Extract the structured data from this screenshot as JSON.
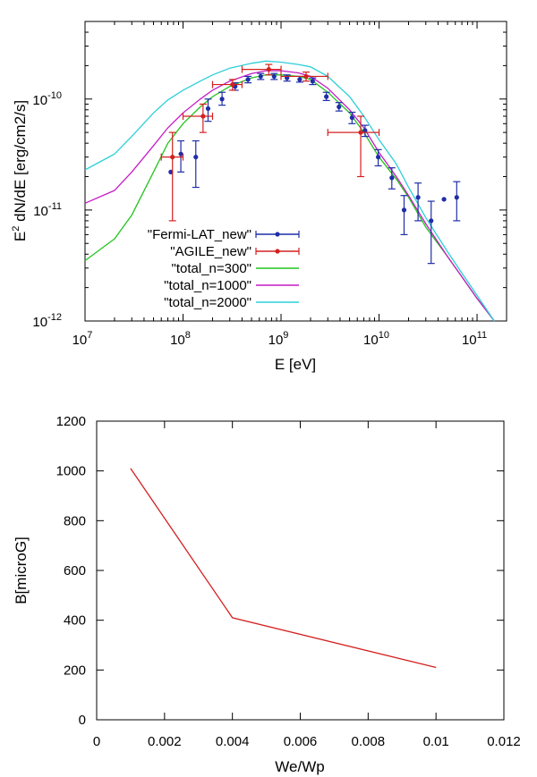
{
  "chart_data": [
    {
      "type": "line",
      "title": "",
      "xlabel": "E [eV]",
      "ylabel_prefix": "E",
      "ylabel_sup": "2",
      "ylabel_suffix": " dN/dE [erg/cm2/s]",
      "xscale": "log",
      "yscale": "log",
      "xlim": [
        10000000.0,
        200000000000.0
      ],
      "ylim": [
        1e-12,
        5e-10
      ],
      "grid": false,
      "legend_position": "bottom-left",
      "x_ticks": [
        {
          "value": 10000000.0,
          "base": "10",
          "exp": "7"
        },
        {
          "value": 100000000.0,
          "base": "10",
          "exp": "8"
        },
        {
          "value": 1000000000.0,
          "base": "10",
          "exp": "9"
        },
        {
          "value": 10000000000.0,
          "base": "10",
          "exp": "10"
        },
        {
          "value": 100000000000.0,
          "base": "10",
          "exp": "11"
        }
      ],
      "y_ticks": [
        {
          "value": 1e-12,
          "base": "10",
          "exp": "-12"
        },
        {
          "value": 1e-11,
          "base": "10",
          "exp": "-11"
        },
        {
          "value": 1e-10,
          "base": "10",
          "exp": "-10"
        }
      ],
      "series": [
        {
          "name": "\"Fermi-LAT_new\"",
          "kind": "points",
          "color": "#1f2ea8",
          "points": [
            {
              "x": 75000000.0,
              "y": 2.2e-11,
              "lo": 2.2e-11,
              "hi": 2.2e-11
            },
            {
              "x": 95000000.0,
              "y": 3.2e-11,
              "lo": 2.2e-11,
              "hi": 4.2e-11
            },
            {
              "x": 135000000.0,
              "y": 3e-11,
              "lo": 1.6e-11,
              "hi": 4.2e-11
            },
            {
              "x": 180000000.0,
              "y": 8.2e-11,
              "lo": 6.3e-11,
              "hi": 1e-10
            },
            {
              "x": 250000000.0,
              "y": 1e-10,
              "lo": 8.8e-11,
              "hi": 1.15e-10
            },
            {
              "x": 340000000.0,
              "y": 1.3e-10,
              "lo": 1.2e-10,
              "hi": 1.4e-10
            },
            {
              "x": 460000000.0,
              "y": 1.5e-10,
              "lo": 1.4e-10,
              "hi": 1.6e-10
            },
            {
              "x": 620000000.0,
              "y": 1.6e-10,
              "lo": 1.5e-10,
              "hi": 1.7e-10
            },
            {
              "x": 850000000.0,
              "y": 1.6e-10,
              "lo": 1.5e-10,
              "hi": 1.7e-10
            },
            {
              "x": 1150000000.0,
              "y": 1.55e-10,
              "lo": 1.45e-10,
              "hi": 1.65e-10
            },
            {
              "x": 1550000000.0,
              "y": 1.5e-10,
              "lo": 1.42e-10,
              "hi": 1.6e-10
            },
            {
              "x": 2100000000.0,
              "y": 1.45e-10,
              "lo": 1.35e-10,
              "hi": 1.55e-10
            },
            {
              "x": 2900000000.0,
              "y": 1.05e-10,
              "lo": 9.7e-11,
              "hi": 1.15e-10
            },
            {
              "x": 3900000000.0,
              "y": 8.5e-11,
              "lo": 7.8e-11,
              "hi": 9.3e-11
            },
            {
              "x": 5300000000.0,
              "y": 6.8e-11,
              "lo": 6e-11,
              "hi": 7.6e-11
            },
            {
              "x": 7200000000.0,
              "y": 5.2e-11,
              "lo": 4.6e-11,
              "hi": 5.8e-11
            },
            {
              "x": 9800000000.0,
              "y": 3e-11,
              "lo": 2.5e-11,
              "hi": 3.5e-11
            },
            {
              "x": 13500000000.0,
              "y": 1.95e-11,
              "lo": 1.55e-11,
              "hi": 2.4e-11
            },
            {
              "x": 18000000000.0,
              "y": 1e-11,
              "lo": 6e-12,
              "hi": 1.35e-11
            },
            {
              "x": 25000000000.0,
              "y": 1.3e-11,
              "lo": 8e-12,
              "hi": 1.75e-11
            },
            {
              "x": 34000000000.0,
              "y": 8e-12,
              "lo": 3.3e-12,
              "hi": 1.2e-11
            },
            {
              "x": 46000000000.0,
              "y": 1.25e-11,
              "lo": 1.25e-11,
              "hi": 1.25e-11
            },
            {
              "x": 62000000000.0,
              "y": 1.3e-11,
              "lo": 8e-12,
              "hi": 1.8e-11
            }
          ]
        },
        {
          "name": "\"AGILE_new\"",
          "kind": "points",
          "color": "#d42020",
          "points": [
            {
              "x": 78000000.0,
              "y": 3e-11,
              "lo": 8e-12,
              "hi": 5e-11,
              "xlo": 60000000.0,
              "xhi": 100000000.0
            },
            {
              "x": 160000000.0,
              "y": 7e-11,
              "lo": 5e-11,
              "hi": 9e-11,
              "xlo": 100000000.0,
              "xhi": 200000000.0
            },
            {
              "x": 320000000.0,
              "y": 1.35e-10,
              "lo": 1.2e-10,
              "hi": 1.5e-10,
              "xlo": 200000000.0,
              "xhi": 400000000.0
            },
            {
              "x": 750000000.0,
              "y": 1.85e-10,
              "lo": 1.65e-10,
              "hi": 2.05e-10,
              "xlo": 400000000.0,
              "xhi": 1000000000.0
            },
            {
              "x": 1800000000.0,
              "y": 1.6e-10,
              "lo": 1.45e-10,
              "hi": 1.75e-10,
              "xlo": 1000000000.0,
              "xhi": 3000000000.0
            },
            {
              "x": 6500000000.0,
              "y": 5e-11,
              "lo": 2e-11,
              "hi": 7e-11,
              "xlo": 3000000000.0,
              "xhi": 10000000000.0
            }
          ]
        },
        {
          "name": "\"total_n=300\"",
          "kind": "line",
          "color": "#22c51e",
          "points": [
            [
              10000000.0,
              3.5e-12
            ],
            [
              20000000.0,
              5.5e-12
            ],
            [
              30000000.0,
              9e-12
            ],
            [
              50000000.0,
              2.2e-11
            ],
            [
              70000000.0,
              4e-11
            ],
            [
              100000000.0,
              6e-11
            ],
            [
              150000000.0,
              8.5e-11
            ],
            [
              200000000.0,
              1.05e-10
            ],
            [
              300000000.0,
              1.3e-10
            ],
            [
              500000000.0,
              1.55e-10
            ],
            [
              700000000.0,
              1.65e-10
            ],
            [
              1000000000.0,
              1.65e-10
            ],
            [
              1500000000.0,
              1.6e-10
            ],
            [
              2000000000.0,
              1.5e-10
            ],
            [
              3000000000.0,
              1.15e-10
            ],
            [
              5000000000.0,
              7.5e-11
            ],
            [
              7000000000.0,
              5e-11
            ],
            [
              10000000000.0,
              3e-11
            ],
            [
              15000000000.0,
              1.9e-11
            ],
            [
              20000000000.0,
              1.3e-11
            ],
            [
              30000000000.0,
              7e-12
            ],
            [
              50000000000.0,
              3.8e-12
            ],
            [
              70000000000.0,
              2.5e-12
            ],
            [
              100000000000.0,
              1.6e-12
            ],
            [
              150000000000.0,
              1e-12
            ]
          ]
        },
        {
          "name": "\"total_n=1000\"",
          "kind": "line",
          "color": "#c41cc4",
          "points": [
            [
              10000000.0,
              1.15e-11
            ],
            [
              20000000.0,
              1.5e-11
            ],
            [
              30000000.0,
              2.2e-11
            ],
            [
              50000000.0,
              3.8e-11
            ],
            [
              70000000.0,
              5.5e-11
            ],
            [
              100000000.0,
              7.5e-11
            ],
            [
              150000000.0,
              1e-10
            ],
            [
              200000000.0,
              1.2e-10
            ],
            [
              300000000.0,
              1.45e-10
            ],
            [
              500000000.0,
              1.7e-10
            ],
            [
              700000000.0,
              1.8e-10
            ],
            [
              1000000000.0,
              1.8e-10
            ],
            [
              1500000000.0,
              1.72e-10
            ],
            [
              2000000000.0,
              1.6e-10
            ],
            [
              3000000000.0,
              1.25e-10
            ],
            [
              5000000000.0,
              8e-11
            ],
            [
              7000000000.0,
              5.5e-11
            ],
            [
              10000000000.0,
              3.3e-11
            ],
            [
              15000000000.0,
              2e-11
            ],
            [
              20000000000.0,
              1.35e-11
            ],
            [
              30000000000.0,
              7.5e-12
            ],
            [
              50000000000.0,
              3.8e-12
            ],
            [
              70000000000.0,
              2.5e-12
            ],
            [
              100000000000.0,
              1.6e-12
            ],
            [
              150000000000.0,
              1e-12
            ]
          ]
        },
        {
          "name": "\"total_n=2000\"",
          "kind": "line",
          "color": "#2ecfd9",
          "points": [
            [
              10000000.0,
              2.3e-11
            ],
            [
              20000000.0,
              3.2e-11
            ],
            [
              30000000.0,
              4.6e-11
            ],
            [
              50000000.0,
              7.5e-11
            ],
            [
              70000000.0,
              9.8e-11
            ],
            [
              100000000.0,
              1.2e-10
            ],
            [
              150000000.0,
              1.45e-10
            ],
            [
              200000000.0,
              1.65e-10
            ],
            [
              300000000.0,
              1.9e-10
            ],
            [
              500000000.0,
              2.1e-10
            ],
            [
              700000000.0,
              2.2e-10
            ],
            [
              1000000000.0,
              2.15e-10
            ],
            [
              1500000000.0,
              2.05e-10
            ],
            [
              2000000000.0,
              1.95e-10
            ],
            [
              3000000000.0,
              1.6e-10
            ],
            [
              5000000000.0,
              1.05e-10
            ],
            [
              7000000000.0,
              7e-11
            ],
            [
              10000000000.0,
              4.3e-11
            ],
            [
              15000000000.0,
              2.6e-11
            ],
            [
              20000000000.0,
              1.6e-11
            ],
            [
              30000000000.0,
              8.5e-12
            ],
            [
              50000000000.0,
              4.2e-12
            ],
            [
              70000000000.0,
              2.7e-12
            ],
            [
              100000000000.0,
              1.7e-12
            ],
            [
              150000000000.0,
              1e-12
            ]
          ]
        }
      ]
    },
    {
      "type": "line",
      "title": "",
      "xlabel": "We/Wp",
      "ylabel": "B[microG]",
      "xlim": [
        0,
        0.012
      ],
      "ylim": [
        0,
        1200
      ],
      "grid": false,
      "x_ticks": [
        "0",
        "0.002",
        "0.004",
        "0.006",
        "0.008",
        "0.01",
        "0.012"
      ],
      "x_tick_values": [
        0,
        0.002,
        0.004,
        0.006,
        0.008,
        0.01,
        0.012
      ],
      "y_ticks": [
        "0",
        "200",
        "400",
        "600",
        "800",
        "1000",
        "1200"
      ],
      "y_tick_values": [
        0,
        200,
        400,
        600,
        800,
        1000,
        1200
      ],
      "series": [
        {
          "name": "B",
          "color": "#d42020",
          "x": [
            0.001,
            0.004,
            0.01
          ],
          "y": [
            1010,
            410,
            210
          ]
        }
      ]
    }
  ]
}
